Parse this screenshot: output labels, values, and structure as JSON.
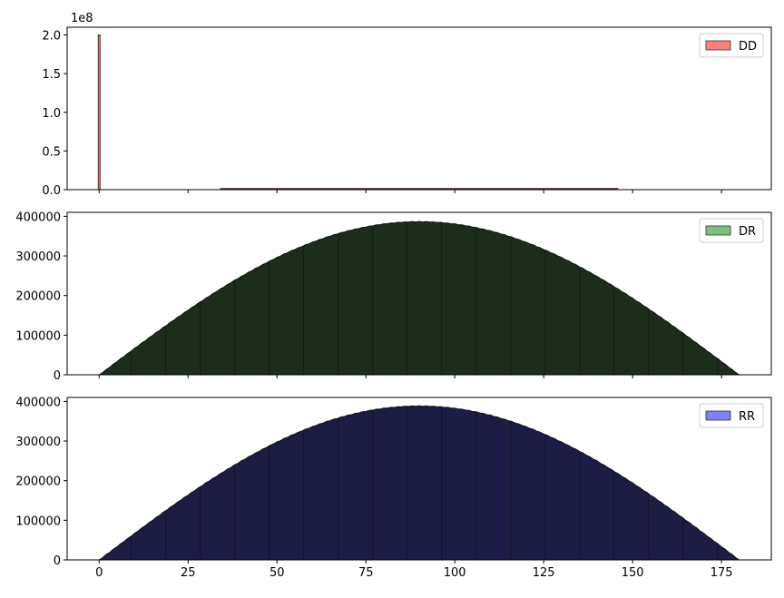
{
  "chart_data": [
    {
      "type": "histogram",
      "series": [
        {
          "name": "DD",
          "color": "#ff0000",
          "alpha": 0.5
        }
      ],
      "x_range": [
        -9,
        189
      ],
      "y_range": [
        0,
        2.1
      ],
      "y_ticks": [
        0.0,
        0.5,
        1.0,
        1.5,
        2.0
      ],
      "y_tick_labels": [
        "0.0",
        "0.5",
        "1.0",
        "1.5",
        "2.0"
      ],
      "y_offset_label": "1e8",
      "x_ticks": [
        0,
        25,
        50,
        75,
        100,
        125,
        150,
        175
      ],
      "x_tick_labels_visible": false,
      "spike": {
        "x": 0,
        "value": 2.0
      },
      "low_line_x_range": [
        34,
        146
      ],
      "legend": "top-right",
      "bar_width": 0.1
    },
    {
      "type": "histogram",
      "series": [
        {
          "name": "DR",
          "color": "#008000",
          "alpha": 0.5,
          "fill": "#1c2e1b"
        }
      ],
      "x_range": [
        -9,
        189
      ],
      "y_range": [
        0,
        410000
      ],
      "y_ticks": [
        0,
        100000,
        200000,
        300000,
        400000
      ],
      "y_tick_labels": [
        "0",
        "100000",
        "200000",
        "300000",
        "400000"
      ],
      "x_ticks": [
        0,
        25,
        50,
        75,
        100,
        125,
        150,
        175
      ],
      "x_tick_labels_visible": false,
      "distribution": "sin",
      "x_extent": [
        0,
        180
      ],
      "peak": 387000,
      "legend": "top-right"
    },
    {
      "type": "histogram",
      "series": [
        {
          "name": "RR",
          "color": "#0000ff",
          "alpha": 0.5,
          "fill": "#1c1c44"
        }
      ],
      "x_range": [
        -9,
        189
      ],
      "y_range": [
        0,
        410000
      ],
      "y_ticks": [
        0,
        100000,
        200000,
        300000,
        400000
      ],
      "y_tick_labels": [
        "0",
        "100000",
        "200000",
        "300000",
        "400000"
      ],
      "x_ticks": [
        0,
        25,
        50,
        75,
        100,
        125,
        150,
        175
      ],
      "x_tick_labels": [
        "0",
        "25",
        "50",
        "75",
        "100",
        "125",
        "150",
        "175"
      ],
      "x_tick_labels_visible": true,
      "distribution": "sin",
      "x_extent": [
        0,
        180
      ],
      "peak": 389000,
      "legend": "top-right"
    }
  ]
}
